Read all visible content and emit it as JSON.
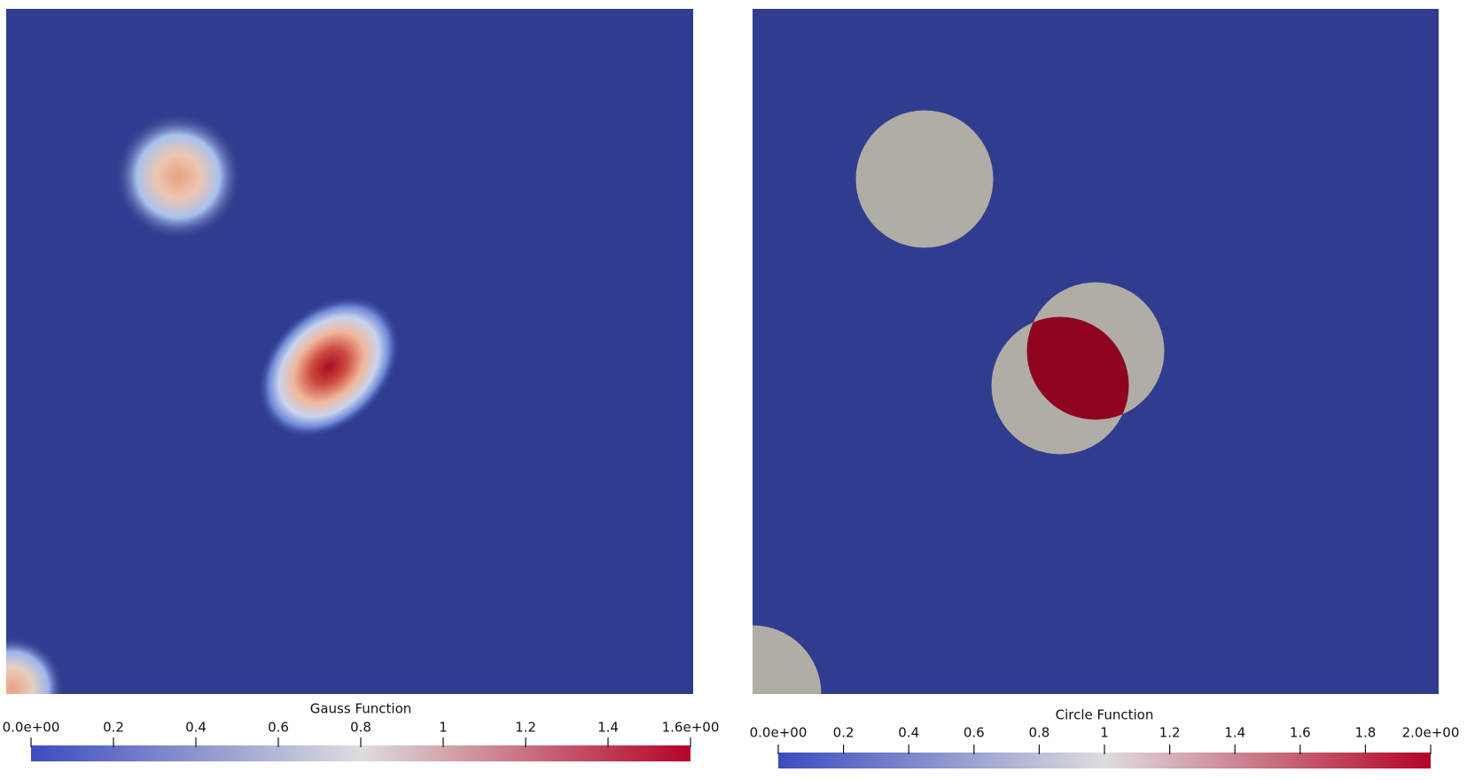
{
  "chart_data": [
    {
      "type": "heatmap",
      "colorbar_title": "Gauss Function",
      "clim": [
        0,
        1.6
      ],
      "cticks": [
        {
          "value": 0,
          "label": "0.0e+00"
        },
        0.2,
        0.4,
        0.6,
        0.8,
        1,
        1.2,
        1.4,
        {
          "value": 1.6,
          "label": "1.6e+00"
        }
      ],
      "colormap": [
        "#3b4cc0",
        "#dddddd",
        "#b40426"
      ]
    },
    {
      "type": "heatmap",
      "colorbar_title": "Circle Function",
      "clim": [
        0,
        2
      ],
      "cticks": [
        {
          "value": 0,
          "label": "0.0e+00"
        },
        0.2,
        0.4,
        0.6,
        0.8,
        1,
        1.2,
        1.4,
        1.6,
        1.8,
        {
          "value": 2,
          "label": "2.0e+00"
        }
      ],
      "colormap": [
        "#3b4cc0",
        "#dddddd",
        "#b40426"
      ]
    }
  ]
}
